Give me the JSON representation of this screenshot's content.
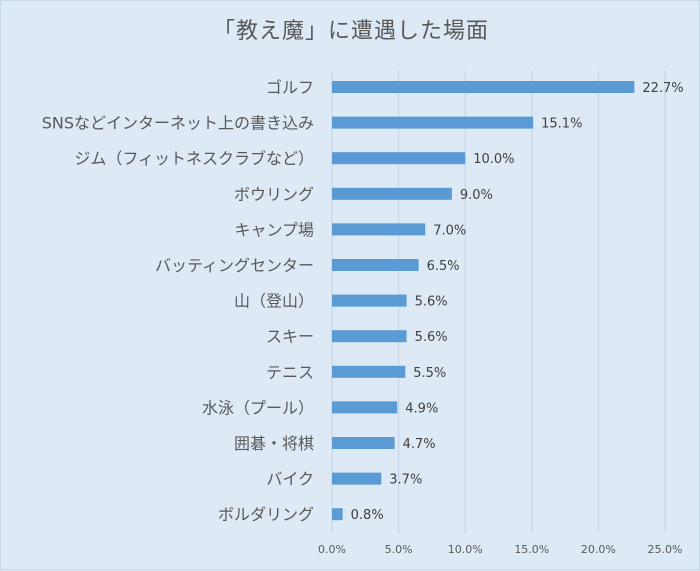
{
  "chart_data": {
    "type": "bar",
    "orientation": "horizontal",
    "title": "「教え魔」に遭遇した場面",
    "categories": [
      "ゴルフ",
      "SNSなどインターネット上の書き込み",
      "ジム（フィットネスクラブなど）",
      "ボウリング",
      "キャンプ場",
      "バッティングセンター",
      "山（登山）",
      "スキー",
      "テニス",
      "水泳（プール）",
      "囲碁・将棋",
      "バイク",
      "ボルダリング"
    ],
    "values": [
      22.7,
      15.1,
      10.0,
      9.0,
      7.0,
      6.5,
      5.6,
      5.6,
      5.5,
      4.9,
      4.7,
      3.7,
      0.8
    ],
    "value_labels": [
      "22.7%",
      "15.1%",
      "10.0%",
      "9.0%",
      "7.0%",
      "6.5%",
      "5.6%",
      "5.6%",
      "5.5%",
      "4.9%",
      "4.7%",
      "3.7%",
      "0.8%"
    ],
    "x_ticks": [
      0,
      5,
      10,
      15,
      20,
      25
    ],
    "x_tick_labels": [
      "0.0%",
      "5.0%",
      "10.0%",
      "15.0%",
      "20.0%",
      "25.0%"
    ],
    "xlim": [
      0,
      25
    ],
    "xlabel": "",
    "ylabel": "",
    "grid": "vertical",
    "bar_color": "#5b9bd5",
    "background_color": "#dde9f5"
  }
}
